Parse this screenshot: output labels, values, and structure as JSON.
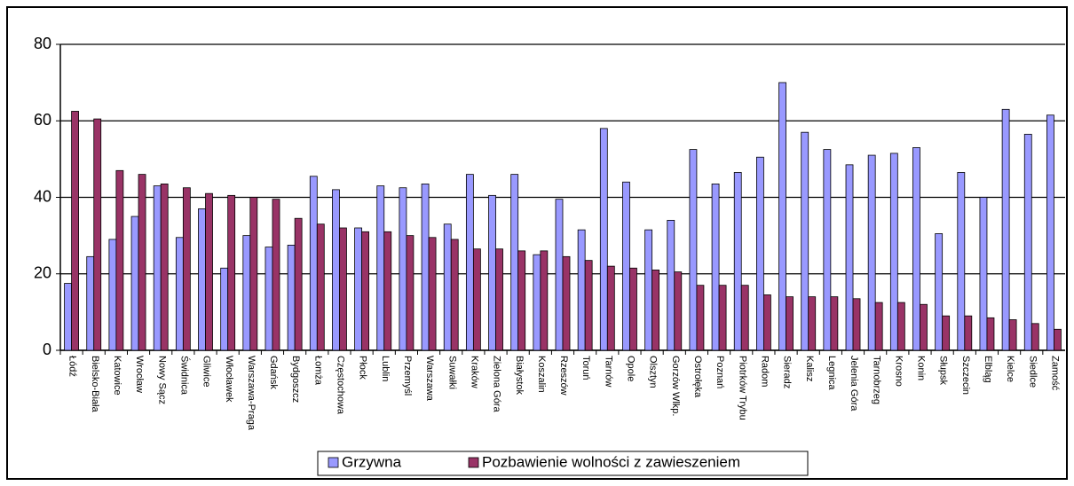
{
  "chart_data": {
    "type": "bar",
    "categories": [
      "Łódź",
      "Bielsko-Biała",
      "Katowice",
      "Wrocław",
      "Nowy Sącz",
      "Świdnica",
      "Gliwice",
      "Włocławek",
      "Warszawa-Praga",
      "Gdańsk",
      "Bydgoszcz",
      "Łomża",
      "Częstochowa",
      "Płock",
      "Lublin",
      "Przemyśl",
      "Warszawa",
      "Suwałki",
      "Kraków",
      "Zielona Góra",
      "Białystok",
      "Koszalin",
      "Rzeszów",
      "Toruń",
      "Tarnów",
      "Opole",
      "Olsztyn",
      "Gorzów Wlkp.",
      "Ostrołęka",
      "Poznań",
      "Piotrków Trybu",
      "Radom",
      "Sieradz",
      "Kalisz",
      "Legnica",
      "Jelenia Góra",
      "Tarnobrzeg",
      "Krosno",
      "Konin",
      "Słupsk",
      "Szczecin",
      "Elbląg",
      "Kielce",
      "Siedlce",
      "Zamość"
    ],
    "series": [
      {
        "name": "Grzywna",
        "color": "#9999ff",
        "values": [
          17.5,
          24.5,
          29,
          35,
          43,
          29.5,
          37,
          21.5,
          30,
          27,
          27.5,
          45.5,
          42,
          32,
          43,
          42.5,
          43.5,
          33,
          46,
          40.5,
          46,
          25,
          39.5,
          31.5,
          58,
          44,
          31.5,
          34,
          52.5,
          43.5,
          46.5,
          50.5,
          70,
          57,
          52.5,
          48.5,
          51,
          51.5,
          53,
          30.5,
          46.5,
          40,
          63,
          56.5,
          61.5
        ]
      },
      {
        "name": "Pozbawienie wolności z zawieszeniem",
        "color": "#993366",
        "values": [
          62.5,
          60.5,
          47,
          46,
          43.5,
          42.5,
          41,
          40.5,
          40,
          39.5,
          34.5,
          33,
          32,
          31,
          31,
          30,
          29.5,
          29,
          26.5,
          26.5,
          26,
          26,
          24.5,
          23.5,
          22,
          21.5,
          21,
          20.5,
          17,
          17,
          17,
          14.5,
          14,
          14,
          14,
          13.5,
          12.5,
          12.5,
          12,
          9,
          9,
          8.5,
          8,
          7,
          5.5
        ]
      }
    ],
    "ylim": [
      0,
      80
    ],
    "yticks": [
      0,
      20,
      40,
      60,
      80
    ],
    "grid": true,
    "legend": "bottom"
  }
}
